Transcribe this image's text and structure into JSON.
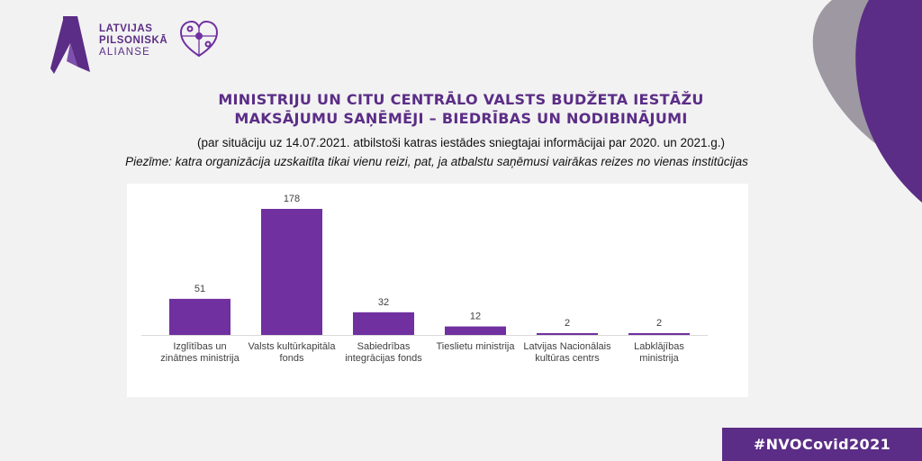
{
  "branding": {
    "logo_lines": [
      "LATVIJAS",
      "PILSONISKĀ",
      "ALIANSE"
    ],
    "accent_color": "#5b2d86"
  },
  "header": {
    "title_line1": "MINISTRIJU UN CITU CENTRĀLO VALSTS BUDŽETA IESTĀŽU",
    "title_line2": "MAKSĀJUMU SAŅĒMĒJI – BIEDRĪBAS UN NODIBINĀJUMI",
    "subtitle": "(par situāciju uz 14.07.2021. atbilstoši katras iestādes sniegtajai informācijai par 2020. un 2021.g.)",
    "note": "Piezīme: katra organizācija uzskaitīta tikai vienu reizi, pat, ja atbalstu saņēmusi vairākas reizes no vienas institūcijas"
  },
  "chart_data": {
    "type": "bar",
    "categories": [
      [
        "Izglītības un",
        "zinātnes ministrija"
      ],
      [
        "Valsts kultūrkapitāla",
        "fonds"
      ],
      [
        "Sabiedrības",
        "integrācijas fonds"
      ],
      [
        "Tieslietu ministrija"
      ],
      [
        "Latvijas Nacionālais",
        "kultūras centrs"
      ],
      [
        "Labklājības",
        "ministrija"
      ]
    ],
    "values": [
      51,
      178,
      32,
      12,
      2,
      2
    ],
    "ylim": [
      0,
      178
    ],
    "grid": false,
    "legend": false,
    "bar_color": "#7030a0"
  },
  "footer": {
    "hashtag": "#NVOCovid2021"
  }
}
